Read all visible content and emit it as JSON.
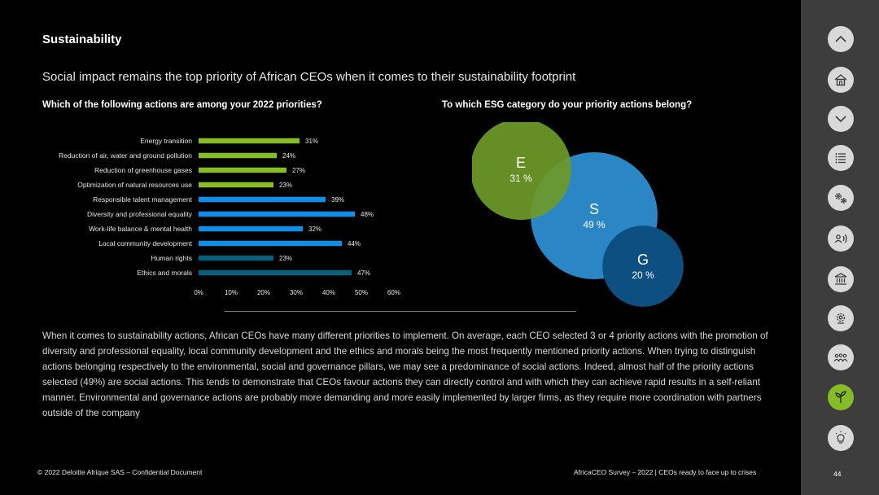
{
  "header": {
    "title": "Sustainability",
    "subtitle": "Social impact remains the top priority of African CEOs when it comes to their sustainability footprint"
  },
  "questions": {
    "left": "Which of the following actions are among your 2022 priorities?",
    "right": "To which ESG category do your priority actions belong?"
  },
  "chart_data": [
    {
      "type": "bar",
      "orientation": "horizontal",
      "title": "Which of the following actions are among your 2022 priorities?",
      "categories": [
        "Energy transition",
        "Reduction of air, water and ground pollution",
        "Reduction of greenhouse gases",
        "Optimization of natural resources use",
        "Responsible talent management",
        "Diversity and professional equality",
        "Work-life balance & mental health",
        "Local community development",
        "Human rights",
        "Ethics and morals"
      ],
      "values": [
        31,
        24,
        27,
        23,
        39,
        48,
        32,
        44,
        23,
        47
      ],
      "value_labels": [
        "31%",
        "24%",
        "27%",
        "23%",
        "39%",
        "48%",
        "32%",
        "44%",
        "23%",
        "47%"
      ],
      "groups": [
        "E",
        "E",
        "E",
        "E",
        "S",
        "S",
        "S",
        "S",
        "G",
        "G"
      ],
      "group_colors": {
        "E": "#86bc25",
        "S": "#0d8ee8",
        "G": "#0a5f7a"
      },
      "xlim": [
        0,
        60
      ],
      "xticks": [
        "0%",
        "10%",
        "20%",
        "30%",
        "40%",
        "50%",
        "60%"
      ]
    },
    {
      "type": "bubble",
      "title": "To which ESG category do your priority actions belong?",
      "series": [
        {
          "name": "E",
          "value": 31,
          "label": "31 %",
          "color": "#6e9a28"
        },
        {
          "name": "S",
          "value": 49,
          "label": "49 %",
          "color": "#2b86c5"
        },
        {
          "name": "G",
          "value": 20,
          "label": "20 %",
          "color": "#0d4f80"
        }
      ]
    }
  ],
  "body": {
    "paragraph": "When it comes to sustainability actions, African CEOs have many different priorities to implement. On average, each CEO selected 3 or 4 priority actions with the promotion of diversity and professional equality, local community development and the ethics and morals being the most frequently mentioned priority actions. When trying to distinguish actions belonging respectively to the environmental, social and governance pillars, we may see a predominance of social actions. Indeed, almost half of the priority actions selected (49%) are social actions. This tends to demonstrate that CEOs favour actions they can directly control and with which they can achieve rapid results in a self-reliant manner.  Environmental and governance actions are probably more demanding and more easily implemented by larger firms, as they require more coordination with partners outside of the company"
  },
  "footer": {
    "left": "© 2022 Deloitte Afrique SAS – Confidential Document",
    "right": "AfricaCEO Survey – 2022 | CEOs ready to face up to crises",
    "page": "44"
  },
  "sidebar": {
    "items": [
      {
        "icon": "chevron-up-icon"
      },
      {
        "icon": "home-icon"
      },
      {
        "icon": "chevron-down-icon"
      },
      {
        "icon": "list-icon"
      },
      {
        "icon": "gears-icon"
      },
      {
        "icon": "speaking-person-icon"
      },
      {
        "icon": "bank-icon"
      },
      {
        "icon": "settings-globe-icon"
      },
      {
        "icon": "people-group-icon"
      },
      {
        "icon": "plant-sprout-icon",
        "active": true
      },
      {
        "icon": "lightbulb-icon"
      }
    ]
  }
}
